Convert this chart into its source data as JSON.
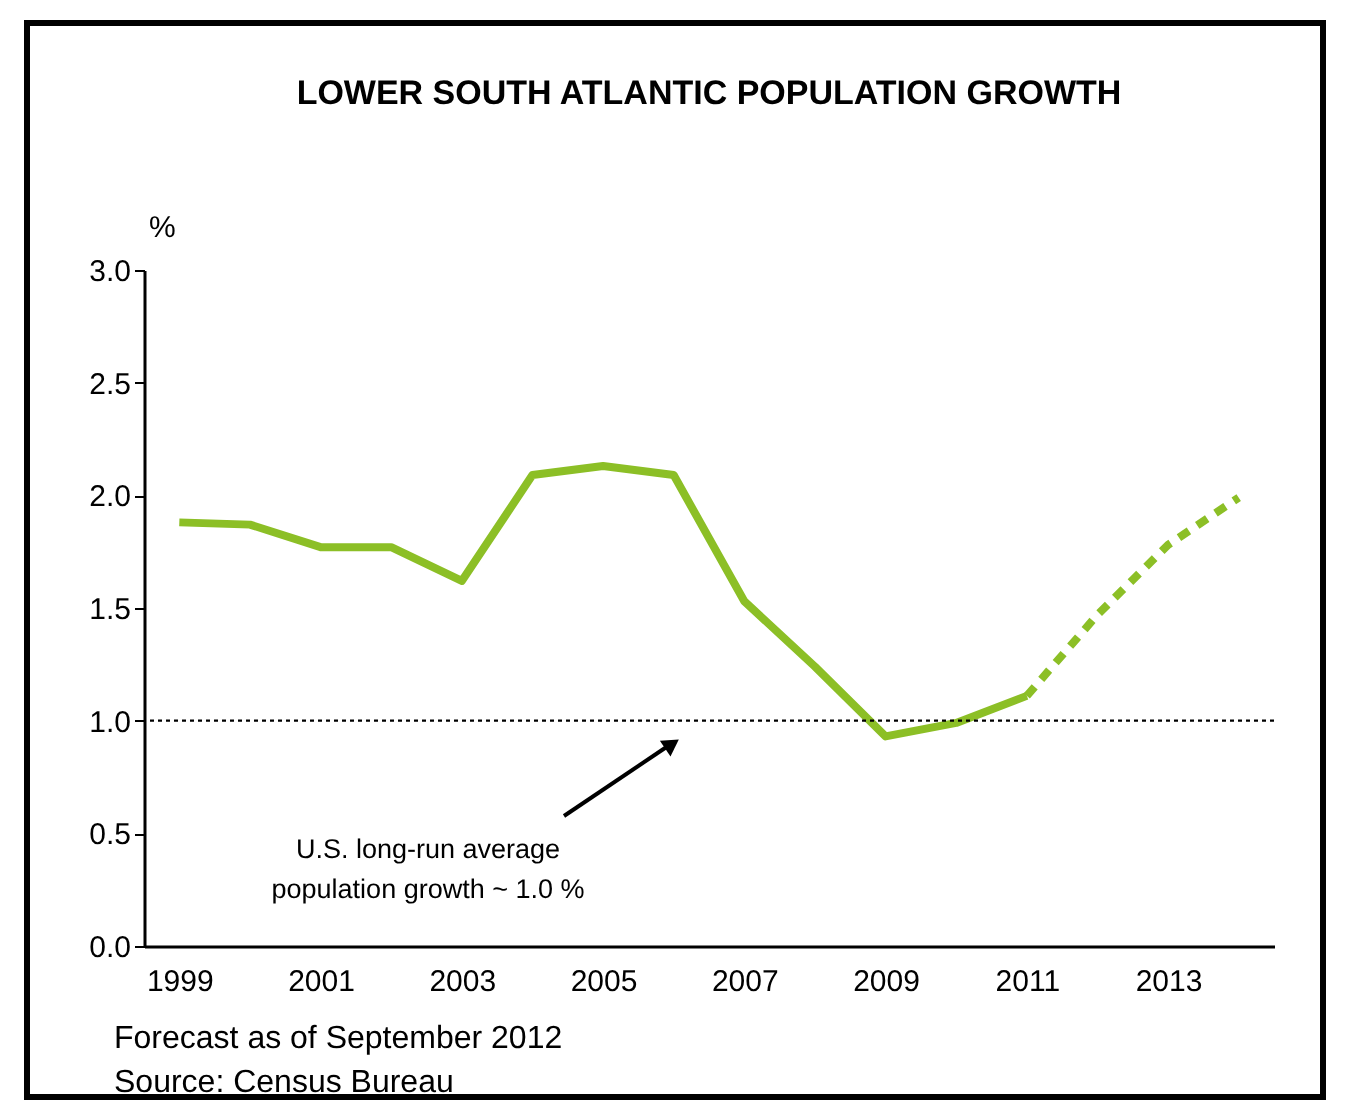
{
  "chart_data": {
    "type": "line",
    "title": "LOWER SOUTH ATLANTIC POPULATION GROWTH",
    "ylabel": "%",
    "x": [
      1999,
      2000,
      2001,
      2002,
      2003,
      2004,
      2005,
      2006,
      2007,
      2008,
      2009,
      2010,
      2011
    ],
    "series": [
      {
        "color": "#8cbf26",
        "line_style": "solid",
        "values": [
          1.88,
          1.87,
          1.77,
          1.77,
          1.62,
          2.09,
          2.13,
          2.09,
          1.53,
          1.24,
          0.93,
          0.99,
          1.11
        ]
      },
      {
        "color": "#8cbf26",
        "line_style": "dashed",
        "x": [
          2011,
          2012,
          2013,
          2014
        ],
        "values": [
          1.11,
          1.47,
          1.78,
          1.99
        ]
      }
    ],
    "xlim": [
      1998.5,
      2014.5
    ],
    "xticks": [
      1999,
      2001,
      2003,
      2005,
      2007,
      2009,
      2011,
      2013
    ],
    "ylim": [
      0,
      3
    ],
    "yticks": [
      {
        "value": 0,
        "label": "0.0"
      },
      0.5,
      {
        "value": 1,
        "label": "1.0"
      },
      1.5,
      {
        "value": 2,
        "label": "2.0"
      },
      2.5,
      {
        "value": 3,
        "label": "3.0"
      }
    ],
    "grid": false,
    "marker": "none",
    "ref_lines": [
      {
        "axis": "y",
        "value": 1.0,
        "color": "#000000",
        "line_style": "dotted"
      }
    ],
    "annotations": [
      "U.S. long-run average\npopulation growth ~ 1.0 %",
      "Forecast as of September 2012",
      "Source: Census Bureau"
    ]
  }
}
